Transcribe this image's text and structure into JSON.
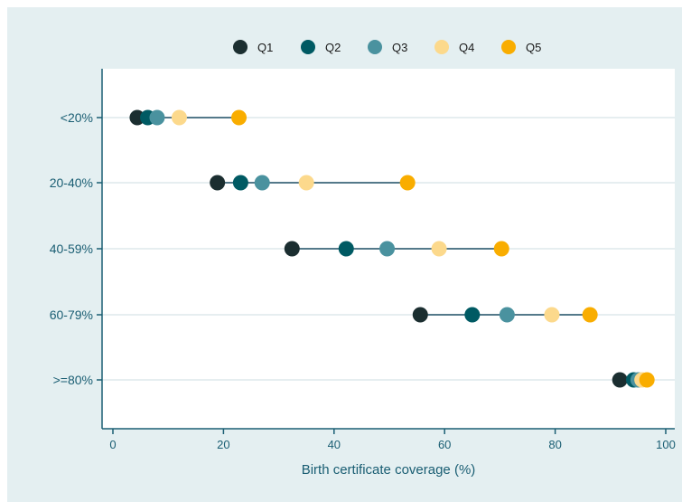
{
  "chart_data": {
    "type": "dot",
    "xlabel": "Birth certificate coverage (%)",
    "ylabel": "",
    "xlim": [
      0,
      100
    ],
    "x_ticks": [
      "0",
      "20",
      "40",
      "60",
      "80",
      "100"
    ],
    "categories": [
      "<20%",
      "20-40%",
      "40-59%",
      "60-79%",
      ">=80%"
    ],
    "legend_position": "top-center",
    "grid": true,
    "series": [
      {
        "name": "Q1",
        "color": "#1b2e30",
        "values": [
          4.4,
          18.9,
          32.4,
          55.6,
          91.7
        ]
      },
      {
        "name": "Q2",
        "color": "#005a63",
        "values": [
          6.3,
          23.1,
          42.2,
          65.0,
          94.2
        ]
      },
      {
        "name": "Q3",
        "color": "#4a929f",
        "values": [
          8.0,
          27.0,
          49.6,
          71.3,
          95.0
        ]
      },
      {
        "name": "Q4",
        "color": "#fcd98c",
        "values": [
          12.0,
          35.0,
          59.0,
          79.4,
          95.7
        ]
      },
      {
        "name": "Q5",
        "color": "#f9ad00",
        "values": [
          22.8,
          53.3,
          70.3,
          86.3,
          96.6
        ]
      }
    ]
  }
}
